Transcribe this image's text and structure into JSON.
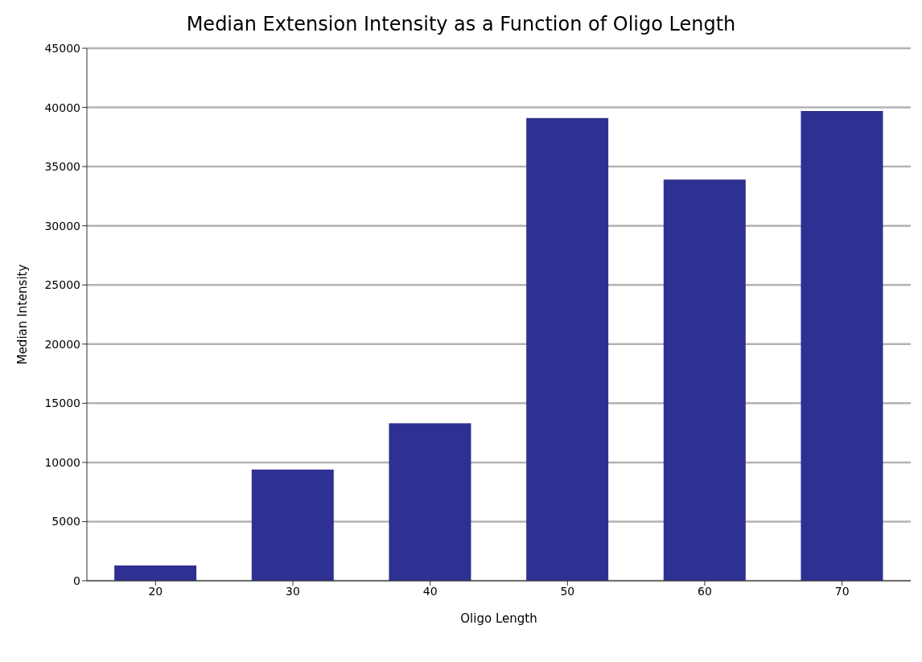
{
  "chart_data": {
    "type": "bar",
    "title": "Median Extension Intensity as a Function of Oligo Length",
    "xlabel": "Oligo Length",
    "ylabel": "Median Intensity",
    "categories": [
      "20",
      "30",
      "40",
      "50",
      "60",
      "70"
    ],
    "values": [
      1300,
      9400,
      13300,
      39100,
      33900,
      39700
    ],
    "color": "#2e3192",
    "ylim": [
      0,
      45000
    ],
    "yticks": [
      0,
      5000,
      10000,
      15000,
      20000,
      25000,
      30000,
      35000,
      40000,
      45000
    ],
    "grid": "y",
    "legend": false
  }
}
